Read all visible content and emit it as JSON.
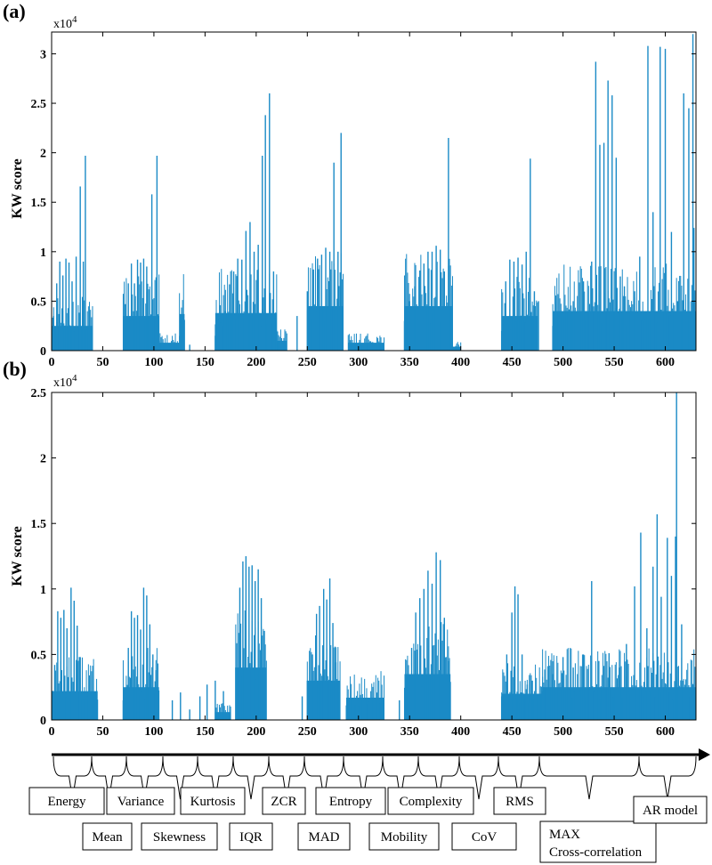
{
  "chart_data": [
    {
      "type": "bar",
      "panel_label": "(a)",
      "ylabel": "KW score",
      "y_multiplier": "x10^4",
      "xlim": [
        0,
        630
      ],
      "ylim": [
        0,
        32200
      ],
      "xticks": [
        0,
        50,
        100,
        150,
        200,
        250,
        300,
        350,
        400,
        450,
        500,
        550,
        600
      ],
      "yticks": [
        0,
        5000,
        10000,
        15000,
        20000,
        25000,
        30000
      ],
      "ytick_labels": [
        "0",
        "0.5",
        "1",
        "1.5",
        "2",
        "2.5",
        "3"
      ],
      "color": "#1a8ac6",
      "series": [
        {
          "peaks": [
            [
              2,
              3500
            ],
            [
              5,
              6800
            ],
            [
              8,
              9000
            ],
            [
              11,
              7600
            ],
            [
              14,
              9300
            ],
            [
              17,
              8900
            ],
            [
              20,
              7000
            ],
            [
              24,
              9500
            ],
            [
              28,
              16600
            ],
            [
              31,
              9000
            ],
            [
              33,
              19700
            ],
            [
              72,
              4700
            ],
            [
              75,
              6800
            ],
            [
              78,
              8800
            ],
            [
              81,
              6800
            ],
            [
              84,
              9200
            ],
            [
              87,
              8900
            ],
            [
              90,
              9300
            ],
            [
              93,
              8500
            ],
            [
              98,
              15800
            ],
            [
              103,
              19700
            ],
            [
              135,
              600
            ],
            [
              160,
              1500
            ],
            [
              165,
              2800
            ],
            [
              170,
              4000
            ],
            [
              174,
              6700
            ],
            [
              178,
              8000
            ],
            [
              182,
              9300
            ],
            [
              186,
              9200
            ],
            [
              190,
              12100
            ],
            [
              194,
              13000
            ],
            [
              198,
              10000
            ],
            [
              202,
              10700
            ],
            [
              206,
              19700
            ],
            [
              209,
              23800
            ],
            [
              213,
              26000
            ],
            [
              217,
              8000
            ],
            [
              240,
              3500
            ],
            [
              250,
              6000
            ],
            [
              256,
              8200
            ],
            [
              260,
              9300
            ],
            [
              264,
              9700
            ],
            [
              268,
              10400
            ],
            [
              272,
              10000
            ],
            [
              276,
              19000
            ],
            [
              280,
              10000
            ],
            [
              283,
              22000
            ],
            [
              345,
              3000
            ],
            [
              350,
              5000
            ],
            [
              355,
              6500
            ],
            [
              360,
              8100
            ],
            [
              364,
              8800
            ],
            [
              368,
              10000
            ],
            [
              372,
              10000
            ],
            [
              376,
              10600
            ],
            [
              380,
              10200
            ],
            [
              384,
              8000
            ],
            [
              388,
              21500
            ],
            [
              440,
              2000
            ],
            [
              444,
              7000
            ],
            [
              448,
              9200
            ],
            [
              452,
              9000
            ],
            [
              456,
              9400
            ],
            [
              460,
              8700
            ],
            [
              464,
              10000
            ],
            [
              468,
              19400
            ],
            [
              472,
              6000
            ],
            [
              476,
              5000
            ],
            [
              490,
              2500
            ],
            [
              500,
              3500
            ],
            [
              510,
              5000
            ],
            [
              520,
              7000
            ],
            [
              528,
              9000
            ],
            [
              532,
              29200
            ],
            [
              536,
              20800
            ],
            [
              540,
              21000
            ],
            [
              544,
              27300
            ],
            [
              548,
              25800
            ],
            [
              552,
              19500
            ],
            [
              556,
              7500
            ],
            [
              560,
              6500
            ],
            [
              570,
              6000
            ],
            [
              575,
              9500
            ],
            [
              583,
              30800
            ],
            [
              588,
              14000
            ],
            [
              595,
              30700
            ],
            [
              600,
              30500
            ],
            [
              606,
              12000
            ],
            [
              612,
              5000
            ],
            [
              618,
              26000
            ],
            [
              623,
              24500
            ],
            [
              627,
              32000
            ],
            [
              628,
              12400
            ]
          ],
          "bands": [
            [
              0,
              40,
              2500
            ],
            [
              70,
              105,
              3500
            ],
            [
              105,
              125,
              800
            ],
            [
              125,
              130,
              3700
            ],
            [
              160,
              220,
              3800
            ],
            [
              220,
              230,
              1000
            ],
            [
              250,
              285,
              4500
            ],
            [
              290,
              325,
              800
            ],
            [
              345,
              392,
              4500
            ],
            [
              392,
              400,
              400
            ],
            [
              440,
              475,
              3500
            ],
            [
              490,
              630,
              4000
            ]
          ]
        }
      ]
    },
    {
      "type": "bar",
      "panel_label": "(b)",
      "ylabel": "KW score",
      "y_multiplier": "x10^4",
      "xlim": [
        0,
        630
      ],
      "ylim": [
        0,
        25000
      ],
      "xticks": [
        0,
        50,
        100,
        150,
        200,
        250,
        300,
        350,
        400,
        450,
        500,
        550,
        600
      ],
      "yticks": [
        0,
        5000,
        10000,
        15000,
        20000,
        25000
      ],
      "ytick_labels": [
        "0",
        "0.5",
        "1",
        "1.5",
        "2",
        "2.5"
      ],
      "color": "#1a8ac6",
      "series": [
        {
          "peaks": [
            [
              3,
              4200
            ],
            [
              6,
              8300
            ],
            [
              9,
              7800
            ],
            [
              12,
              8400
            ],
            [
              15,
              7000
            ],
            [
              19,
              10100
            ],
            [
              22,
              9100
            ],
            [
              25,
              7200
            ],
            [
              28,
              4800
            ],
            [
              70,
              1500
            ],
            [
              75,
              5500
            ],
            [
              78,
              8300
            ],
            [
              81,
              7800
            ],
            [
              84,
              8000
            ],
            [
              87,
              6900
            ],
            [
              90,
              10100
            ],
            [
              93,
              9500
            ],
            [
              96,
              7300
            ],
            [
              99,
              5000
            ],
            [
              102,
              3800
            ],
            [
              118,
              1500
            ],
            [
              126,
              2100
            ],
            [
              135,
              800
            ],
            [
              145,
              1800
            ],
            [
              152,
              2700
            ],
            [
              160,
              3000
            ],
            [
              168,
              2200
            ],
            [
              180,
              4000
            ],
            [
              184,
              10100
            ],
            [
              187,
              12100
            ],
            [
              190,
              12500
            ],
            [
              193,
              11700
            ],
            [
              196,
              11800
            ],
            [
              199,
              10600
            ],
            [
              202,
              11500
            ],
            [
              205,
              9300
            ],
            [
              208,
              6800
            ],
            [
              245,
              1800
            ],
            [
              250,
              3000
            ],
            [
              255,
              5000
            ],
            [
              259,
              8100
            ],
            [
              262,
              8700
            ],
            [
              266,
              10000
            ],
            [
              269,
              9200
            ],
            [
              272,
              10800
            ],
            [
              275,
              7400
            ],
            [
              278,
              4400
            ],
            [
              340,
              1500
            ],
            [
              346,
              2300
            ],
            [
              352,
              5500
            ],
            [
              356,
              8200
            ],
            [
              360,
              9300
            ],
            [
              364,
              10000
            ],
            [
              368,
              11400
            ],
            [
              372,
              10400
            ],
            [
              376,
              12800
            ],
            [
              380,
              12200
            ],
            [
              384,
              7800
            ],
            [
              388,
              4500
            ],
            [
              440,
              1800
            ],
            [
              445,
              5000
            ],
            [
              450,
              8200
            ],
            [
              453,
              10200
            ],
            [
              456,
              9600
            ],
            [
              460,
              5000
            ],
            [
              465,
              2700
            ],
            [
              470,
              3000
            ],
            [
              475,
              1800
            ],
            [
              480,
              2200
            ],
            [
              490,
              3500
            ],
            [
              500,
              4800
            ],
            [
              510,
              4000
            ],
            [
              520,
              5000
            ],
            [
              528,
              10600
            ],
            [
              535,
              4500
            ],
            [
              545,
              5100
            ],
            [
              555,
              4000
            ],
            [
              562,
              5800
            ],
            [
              570,
              10200
            ],
            [
              576,
              14300
            ],
            [
              582,
              7000
            ],
            [
              588,
              11700
            ],
            [
              592,
              15700
            ],
            [
              596,
              9400
            ],
            [
              602,
              13900
            ],
            [
              606,
              11000
            ],
            [
              610,
              14000
            ],
            [
              611,
              25000
            ],
            [
              616,
              7300
            ],
            [
              622,
              2400
            ],
            [
              627,
              2700
            ]
          ],
          "bands": [
            [
              0,
              45,
              2200
            ],
            [
              70,
              105,
              2500
            ],
            [
              160,
              175,
              600
            ],
            [
              180,
              210,
              4000
            ],
            [
              250,
              282,
              3000
            ],
            [
              288,
              325,
              1700
            ],
            [
              345,
              390,
              3500
            ],
            [
              440,
              480,
              2000
            ],
            [
              480,
              630,
              2500
            ]
          ]
        }
      ]
    }
  ],
  "feature_groups": [
    {
      "label": "Energy",
      "tier": 1
    },
    {
      "label": "Mean",
      "tier": 2
    },
    {
      "label": "Variance",
      "tier": 1
    },
    {
      "label": "Skewness",
      "tier": 2
    },
    {
      "label": "Kurtosis",
      "tier": 1
    },
    {
      "label": "IQR",
      "tier": 2
    },
    {
      "label": "ZCR",
      "tier": 1
    },
    {
      "label": "MAD",
      "tier": 2
    },
    {
      "label": "Entropy",
      "tier": 1
    },
    {
      "label": "Mobility",
      "tier": 2
    },
    {
      "label": "Complexity",
      "tier": 1
    },
    {
      "label": "CoV",
      "tier": 2
    },
    {
      "label": "RMS",
      "tier": 1
    },
    {
      "label": "MAX",
      "label2": "Cross-correlation",
      "tier": 2
    },
    {
      "label": "AR model",
      "tier": 1
    }
  ]
}
